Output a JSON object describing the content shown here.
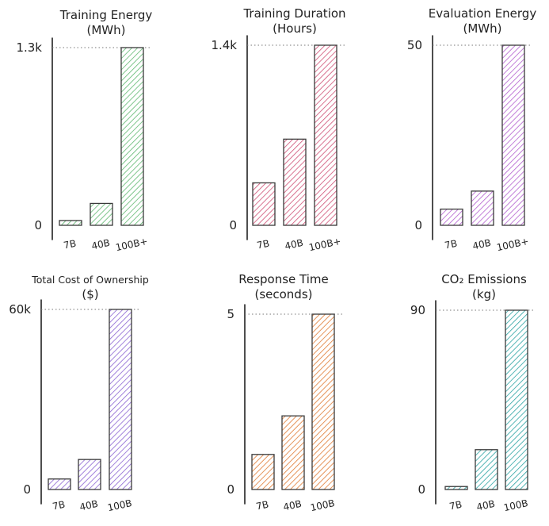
{
  "chart_data": [
    {
      "type": "bar",
      "title_lines": [
        "Training Energy",
        "(MWh)"
      ],
      "categories": [
        "7B",
        "40B",
        "100B+"
      ],
      "values": [
        35,
        160,
        1300
      ],
      "ylim": [
        0,
        1300
      ],
      "yticks": [
        "0",
        "1.3k"
      ],
      "color": "#5fb870",
      "grid": false
    },
    {
      "type": "bar",
      "title_lines": [
        "Training Duration",
        "(Hours)"
      ],
      "categories": [
        "7B",
        "40B",
        "100B+"
      ],
      "values": [
        330,
        670,
        1400
      ],
      "ylim": [
        0,
        1400
      ],
      "yticks": [
        "0",
        "1.4k"
      ],
      "color": "#cf4f74",
      "grid": false
    },
    {
      "type": "bar",
      "title_lines": [
        "Evaluation Energy",
        "(MWh)"
      ],
      "categories": [
        "7B",
        "40B",
        "100B+"
      ],
      "values": [
        4.5,
        9.5,
        50
      ],
      "ylim": [
        0,
        50
      ],
      "yticks": [
        "0",
        "50"
      ],
      "color": "#b35fcf",
      "grid": false
    },
    {
      "type": "bar",
      "title_lines": [
        "Total Cost of Ownership",
        "($)"
      ],
      "categories": [
        "7B",
        "40B",
        "100B"
      ],
      "values": [
        3500,
        10000,
        60000
      ],
      "ylim": [
        0,
        60000
      ],
      "yticks": [
        "0",
        "60k"
      ],
      "color": "#8a63d2",
      "grid": false
    },
    {
      "type": "bar",
      "title_lines": [
        "Response Time",
        "(seconds)"
      ],
      "categories": [
        "7B",
        "40B",
        "100B"
      ],
      "values": [
        1.0,
        2.1,
        5.0
      ],
      "ylim": [
        0,
        5
      ],
      "yticks": [
        "0",
        "5"
      ],
      "color": "#e07a33",
      "grid": false
    },
    {
      "type": "bar",
      "title_lines": [
        "CO₂ Emissions",
        "(kg)"
      ],
      "categories": [
        "7B",
        "40B",
        "100B"
      ],
      "values": [
        1.5,
        20,
        90
      ],
      "ylim": [
        0,
        90
      ],
      "yticks": [
        "0",
        "90"
      ],
      "color": "#2aa3a3",
      "grid": false
    }
  ]
}
